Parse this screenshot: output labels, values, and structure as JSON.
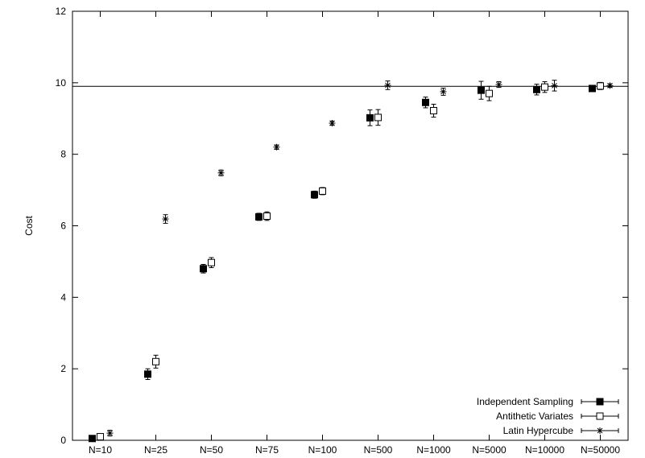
{
  "chart_data": {
    "type": "scatter",
    "title": "",
    "xlabel": "",
    "ylabel": "Cost",
    "categories": [
      "N=10",
      "N=25",
      "N=50",
      "N=75",
      "N=100",
      "N=500",
      "N=1000",
      "N=5000",
      "N=10000",
      "N=50000"
    ],
    "ylim": [
      0,
      12
    ],
    "yticks": [
      "0",
      "2",
      "4",
      "6",
      "8",
      "10",
      "12"
    ],
    "reference_line": 9.9,
    "legend_position": "bottom-right",
    "grid": false,
    "series": [
      {
        "name": "Independent Sampling",
        "marker": "filled-square",
        "values": [
          0.05,
          1.85,
          4.8,
          6.25,
          6.87,
          9.02,
          9.45,
          9.79,
          9.81,
          9.84
        ],
        "errors": [
          0.05,
          0.15,
          0.12,
          0.1,
          0.1,
          0.22,
          0.15,
          0.25,
          0.15,
          0.08
        ]
      },
      {
        "name": "Antithetic Variates",
        "marker": "open-square",
        "values": [
          0.1,
          2.2,
          4.97,
          6.27,
          6.97,
          9.03,
          9.22,
          9.7,
          9.88,
          9.91
        ],
        "errors": [
          0.08,
          0.18,
          0.14,
          0.12,
          0.1,
          0.22,
          0.18,
          0.2,
          0.15,
          0.1
        ]
      },
      {
        "name": "Latin Hypercube",
        "marker": "star",
        "values": [
          0.2,
          6.19,
          7.48,
          8.2,
          8.87,
          9.93,
          9.75,
          9.95,
          9.92,
          9.92
        ],
        "errors": [
          0.08,
          0.12,
          0.08,
          0.06,
          0.06,
          0.12,
          0.1,
          0.08,
          0.15,
          0.05
        ]
      }
    ]
  }
}
